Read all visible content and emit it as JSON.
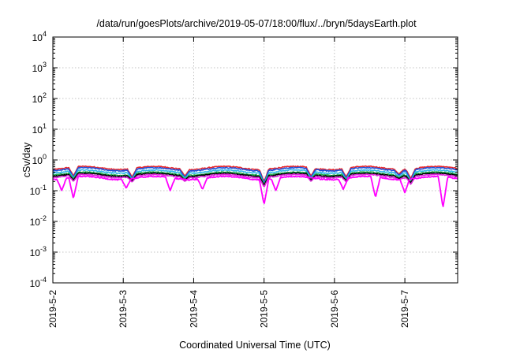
{
  "chart_data": {
    "type": "line",
    "title": "/data/run/goesPlots/archive/2019-05-07/18:00/flux/../bryn/5daysEarth.plot",
    "xlabel": "Coordinated Universal Time (UTC)",
    "ylabel": "cSv/day",
    "yscale": "log",
    "ylim": [
      0.0001,
      10000
    ],
    "xlim": [
      "2019-05-02 00:00",
      "2019-05-07 18:00"
    ],
    "grid": true,
    "x_ticks": [
      "2019-5-2",
      "2019-5-3",
      "2019-5-4",
      "2019-5-5",
      "2019-5-6",
      "2019-5-7"
    ],
    "y_ticks": [
      {
        "base": "10",
        "exp": "-4",
        "value": 0.0001
      },
      {
        "base": "10",
        "exp": "-3",
        "value": 0.001
      },
      {
        "base": "10",
        "exp": "-2",
        "value": 0.01
      },
      {
        "base": "10",
        "exp": "-1",
        "value": 0.1
      },
      {
        "base": "10",
        "exp": "0",
        "value": 1
      },
      {
        "base": "10",
        "exp": "1",
        "value": 10
      },
      {
        "base": "10",
        "exp": "2",
        "value": 100
      },
      {
        "base": "10",
        "exp": "3",
        "value": 1000
      },
      {
        "base": "10",
        "exp": "4",
        "value": 10000
      }
    ],
    "series": [
      {
        "color": "#e8282d",
        "baseline": 0.55,
        "dips": [
          [
            "2019-05-02 07:00",
            0.3
          ],
          [
            "2019-05-03 03:00",
            0.28
          ],
          [
            "2019-05-03 21:00",
            0.3
          ],
          [
            "2019-05-05 00:00",
            0.2
          ],
          [
            "2019-05-05 16:00",
            0.3
          ],
          [
            "2019-05-06 04:00",
            0.28
          ],
          [
            "2019-05-06 22:00",
            0.35
          ],
          [
            "2019-05-07 02:00",
            0.25
          ]
        ]
      },
      {
        "color": "#1e4fd8",
        "baseline": 0.5,
        "dips": [
          [
            "2019-05-02 07:00",
            0.27
          ],
          [
            "2019-05-03 03:00",
            0.25
          ],
          [
            "2019-05-03 21:00",
            0.27
          ],
          [
            "2019-05-05 00:00",
            0.18
          ],
          [
            "2019-05-05 16:00",
            0.27
          ],
          [
            "2019-05-06 04:00",
            0.25
          ],
          [
            "2019-05-06 22:00",
            0.32
          ],
          [
            "2019-05-07 02:00",
            0.22
          ]
        ]
      },
      {
        "color": "#2fb8e8",
        "baseline": 0.42,
        "dips": [
          [
            "2019-05-02 07:00",
            0.25
          ],
          [
            "2019-05-03 03:00",
            0.23
          ],
          [
            "2019-05-03 21:00",
            0.25
          ],
          [
            "2019-05-05 00:00",
            0.16
          ],
          [
            "2019-05-05 16:00",
            0.25
          ],
          [
            "2019-05-06 04:00",
            0.23
          ],
          [
            "2019-05-06 22:00",
            0.28
          ],
          [
            "2019-05-07 02:00",
            0.2
          ]
        ]
      },
      {
        "color": "#22b050",
        "baseline": 0.36,
        "dips": [
          [
            "2019-05-02 07:00",
            0.24
          ],
          [
            "2019-05-03 03:00",
            0.22
          ],
          [
            "2019-05-03 21:00",
            0.24
          ],
          [
            "2019-05-05 00:00",
            0.16
          ],
          [
            "2019-05-05 16:00",
            0.24
          ],
          [
            "2019-05-06 04:00",
            0.22
          ],
          [
            "2019-05-06 22:00",
            0.27
          ],
          [
            "2019-05-07 02:00",
            0.19
          ]
        ]
      },
      {
        "color": "#000000",
        "baseline": 0.33,
        "dips": [
          [
            "2019-05-02 07:00",
            0.22
          ],
          [
            "2019-05-03 03:00",
            0.21
          ],
          [
            "2019-05-03 21:00",
            0.22
          ],
          [
            "2019-05-05 00:00",
            0.15
          ],
          [
            "2019-05-05 16:00",
            0.22
          ],
          [
            "2019-05-06 04:00",
            0.21
          ],
          [
            "2019-05-06 22:00",
            0.25
          ],
          [
            "2019-05-07 02:00",
            0.18
          ]
        ]
      },
      {
        "color": "#d82ad8",
        "baseline": 0.3,
        "dips": [
          [
            "2019-05-02 07:00",
            0.2
          ],
          [
            "2019-05-03 03:00",
            0.19
          ],
          [
            "2019-05-03 21:00",
            0.2
          ],
          [
            "2019-05-05 00:00",
            0.13
          ],
          [
            "2019-05-05 16:00",
            0.2
          ],
          [
            "2019-05-06 04:00",
            0.19
          ],
          [
            "2019-05-06 22:00",
            0.23
          ],
          [
            "2019-05-07 02:00",
            0.16
          ]
        ]
      },
      {
        "color": "#ff00ff",
        "baseline": 0.26,
        "dips": [
          [
            "2019-05-02 03:00",
            0.1
          ],
          [
            "2019-05-02 07:00",
            0.055
          ],
          [
            "2019-05-03 01:00",
            0.12
          ],
          [
            "2019-05-03 16:00",
            0.1
          ],
          [
            "2019-05-04 03:00",
            0.11
          ],
          [
            "2019-05-05 00:00",
            0.035
          ],
          [
            "2019-05-05 04:00",
            0.1
          ],
          [
            "2019-05-06 03:00",
            0.11
          ],
          [
            "2019-05-06 14:00",
            0.06
          ],
          [
            "2019-05-07 00:00",
            0.085
          ],
          [
            "2019-05-07 13:00",
            0.028
          ]
        ]
      }
    ]
  }
}
